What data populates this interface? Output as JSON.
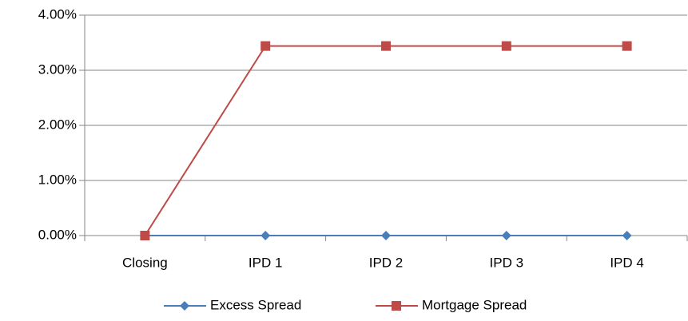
{
  "chart_data": {
    "type": "line",
    "categories": [
      "Closing",
      "IPD 1",
      "IPD 2",
      "IPD 3",
      "IPD 4"
    ],
    "series": [
      {
        "name": "Excess Spread",
        "color": "#4a7ebb",
        "marker": "diamond",
        "values": [
          0,
          0,
          0,
          0,
          0
        ]
      },
      {
        "name": "Mortgage Spread",
        "color": "#be4b48",
        "marker": "square",
        "values": [
          0,
          3.44,
          3.44,
          3.44,
          3.44
        ]
      }
    ],
    "ylim": [
      0,
      4
    ],
    "yticks": [
      {
        "value": 0,
        "label": "0.00%"
      },
      {
        "value": 1,
        "label": "1.00%"
      },
      {
        "value": 2,
        "label": "2.00%"
      },
      {
        "value": 3,
        "label": "3.00%"
      },
      {
        "value": 4,
        "label": "4.00%"
      }
    ],
    "grid": true,
    "legend": "bottom"
  }
}
